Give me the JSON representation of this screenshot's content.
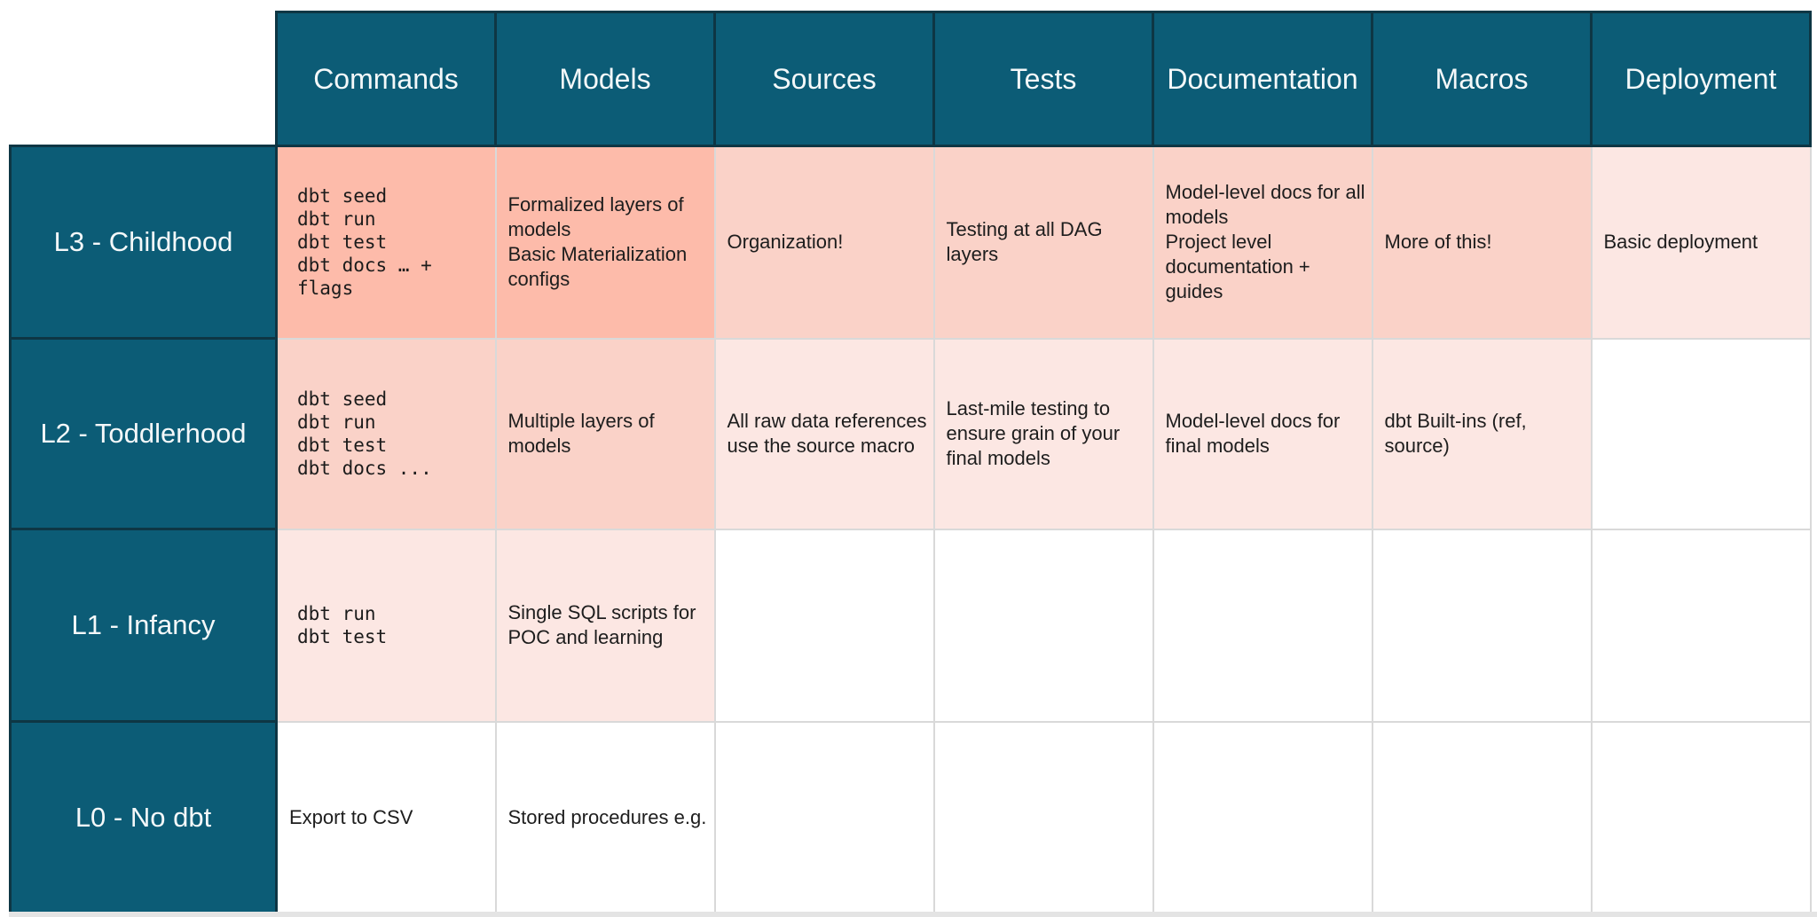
{
  "table": {
    "column_headers": [
      "Commands",
      "Models",
      "Sources",
      "Tests",
      "Documentation",
      "Macros",
      "Deployment"
    ],
    "rows": [
      {
        "label": "L3 - Childhood",
        "cells": [
          {
            "shade": "dark",
            "code": true,
            "lines": [
              "dbt seed",
              "dbt run",
              "dbt test",
              "dbt docs … +",
              "flags"
            ]
          },
          {
            "shade": "dark",
            "code": false,
            "lines": [
              "Formalized layers of models",
              "Basic Materialization configs"
            ]
          },
          {
            "shade": "mid",
            "code": false,
            "lines": [
              "Organization!"
            ]
          },
          {
            "shade": "mid",
            "code": false,
            "lines": [
              "Testing at all DAG layers"
            ]
          },
          {
            "shade": "mid",
            "code": false,
            "lines": [
              "Model-level docs for all models",
              "Project level documentation + guides"
            ]
          },
          {
            "shade": "mid",
            "code": false,
            "lines": [
              "More of this!"
            ]
          },
          {
            "shade": "light",
            "code": false,
            "lines": [
              "Basic deployment"
            ]
          }
        ]
      },
      {
        "label": "L2 - Toddlerhood",
        "cells": [
          {
            "shade": "mid",
            "code": true,
            "lines": [
              "dbt seed",
              "dbt run",
              "dbt test",
              "dbt docs ..."
            ]
          },
          {
            "shade": "mid",
            "code": false,
            "lines": [
              "Multiple layers of models"
            ]
          },
          {
            "shade": "light",
            "code": false,
            "lines": [
              "All raw data references use the source macro"
            ]
          },
          {
            "shade": "light",
            "code": false,
            "lines": [
              "Last-mile testing to ensure grain of your final models"
            ]
          },
          {
            "shade": "light",
            "code": false,
            "lines": [
              "Model-level docs for final models"
            ]
          },
          {
            "shade": "light",
            "code": false,
            "lines": [
              "dbt Built-ins (ref, source)"
            ]
          },
          {
            "shade": "white",
            "code": false,
            "lines": []
          }
        ]
      },
      {
        "label": "L1 - Infancy",
        "cells": [
          {
            "shade": "light",
            "code": true,
            "lines": [
              "dbt run",
              "dbt test"
            ]
          },
          {
            "shade": "light",
            "code": false,
            "lines": [
              "Single SQL scripts for POC and learning"
            ]
          },
          {
            "shade": "white",
            "code": false,
            "lines": []
          },
          {
            "shade": "white",
            "code": false,
            "lines": []
          },
          {
            "shade": "white",
            "code": false,
            "lines": []
          },
          {
            "shade": "white",
            "code": false,
            "lines": []
          },
          {
            "shade": "white",
            "code": false,
            "lines": []
          }
        ]
      },
      {
        "label": "L0 - No dbt",
        "cells": [
          {
            "shade": "white",
            "code": false,
            "lines": [
              "Export to CSV"
            ]
          },
          {
            "shade": "white",
            "code": false,
            "lines": [
              "Stored procedures e.g."
            ]
          },
          {
            "shade": "white",
            "code": false,
            "lines": []
          },
          {
            "shade": "white",
            "code": false,
            "lines": []
          },
          {
            "shade": "white",
            "code": false,
            "lines": []
          },
          {
            "shade": "white",
            "code": false,
            "lines": []
          },
          {
            "shade": "white",
            "code": false,
            "lines": []
          }
        ]
      }
    ],
    "colors": {
      "teal": "#0C5C76",
      "teal_border": "#0E3644",
      "header_text": "#F4F8F9",
      "body_text": "#1D1D1D",
      "shade_dark": "#FDBBAA",
      "shade_mid": "#FAD2C8",
      "shade_light": "#FCE7E3",
      "shade_white": "#FFFFFF",
      "grid_line": "#D9D9D9",
      "page_edge": "#E4E4E4"
    }
  }
}
